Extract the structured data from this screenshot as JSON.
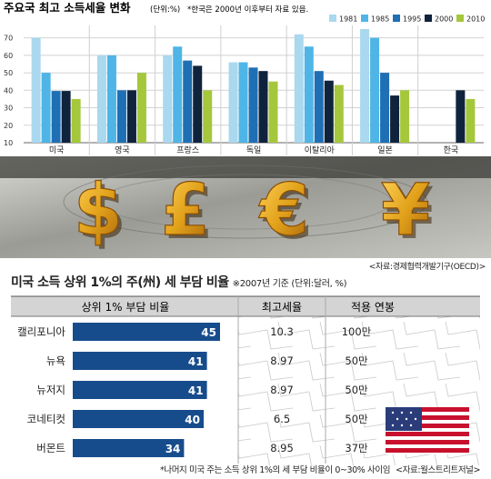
{
  "chart_data": [
    {
      "type": "bar",
      "title": "주요국 최고 소득세율 변화",
      "unit_note": "(단위:%)",
      "annotation": "*한국은 2000년 이후부터 자료 있음.",
      "categories": [
        "미국",
        "영국",
        "프랑스",
        "독일",
        "이탈리아",
        "일본",
        "한국"
      ],
      "ylim": [
        10,
        75
      ],
      "yticks": [
        10,
        20,
        30,
        40,
        50,
        60,
        70
      ],
      "grid": true,
      "legend_position": "top-right",
      "series": [
        {
          "name": "1981",
          "color": "#aad8ee",
          "values": [
            70,
            60,
            60,
            56,
            72,
            75,
            null
          ]
        },
        {
          "name": "1985",
          "color": "#4fb5e6",
          "values": [
            50,
            60,
            65,
            56,
            65,
            70,
            null
          ]
        },
        {
          "name": "1995",
          "color": "#1f6fb4",
          "values": [
            39.6,
            40,
            57,
            53,
            51,
            50,
            null
          ]
        },
        {
          "name": "2000",
          "color": "#10233d",
          "values": [
            39.6,
            40,
            54,
            51,
            45.5,
            37,
            40
          ]
        },
        {
          "name": "2010",
          "color": "#a5c73c",
          "values": [
            35,
            50,
            40,
            45,
            43,
            40,
            35
          ]
        }
      ]
    },
    {
      "type": "table",
      "title": "미국 소득 상위 1%의 주(州) 세 부담 비율",
      "subtitle": "※2007년 기준 (단위:달러, %)",
      "columns": [
        "상위 1% 부담 비율",
        "최고세율",
        "적용 연봉"
      ],
      "rows": [
        {
          "state": "캘리포니아",
          "share": 45,
          "top_rate": "10.3",
          "income": "100만"
        },
        {
          "state": "뉴욕",
          "share": 41,
          "top_rate": "8.97",
          "income": "50만"
        },
        {
          "state": "뉴저지",
          "share": 41,
          "top_rate": "8.97",
          "income": "50만"
        },
        {
          "state": "코네티컷",
          "share": 40,
          "top_rate": "6.5",
          "income": "50만"
        },
        {
          "state": "버몬트",
          "share": 34,
          "top_rate": "8.95",
          "income": "37만"
        }
      ],
      "share_max": 45
    }
  ],
  "source_top": "<자료:경제협력개발기구(OECD)>",
  "footnote": "*나머지 미국 주는 소득 상위 1%의 세 부담 비율이 0~30% 사이임",
  "source_bottom": "<자료:월스트리트저널>",
  "currency_symbols": [
    "$",
    "£",
    "€",
    "¥"
  ],
  "colors": {
    "currency_gold": "#e2a21b",
    "table_bar": "#174c8c",
    "band_bg": "#b7b7b2"
  }
}
